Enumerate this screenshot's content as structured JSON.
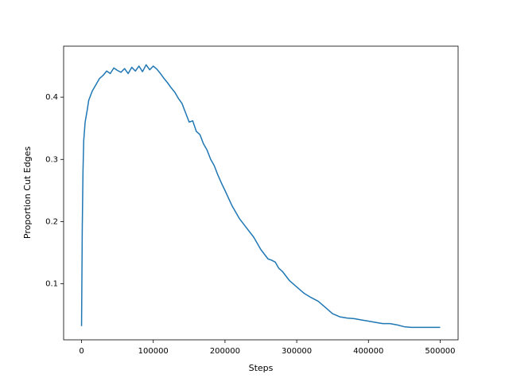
{
  "chart_data": {
    "type": "line",
    "x_label": "Steps",
    "y_label": "Proportion Cut Edges",
    "x": [
      0,
      1000,
      2000,
      3000,
      5000,
      8000,
      10000,
      15000,
      20000,
      25000,
      30000,
      35000,
      40000,
      45000,
      50000,
      55000,
      60000,
      65000,
      70000,
      75000,
      80000,
      85000,
      90000,
      95000,
      100000,
      105000,
      110000,
      115000,
      120000,
      125000,
      130000,
      135000,
      140000,
      145000,
      150000,
      155000,
      160000,
      165000,
      170000,
      175000,
      180000,
      185000,
      190000,
      195000,
      200000,
      210000,
      220000,
      230000,
      240000,
      250000,
      260000,
      265000,
      270000,
      275000,
      280000,
      290000,
      300000,
      310000,
      320000,
      330000,
      340000,
      350000,
      360000,
      370000,
      380000,
      390000,
      400000,
      410000,
      420000,
      430000,
      440000,
      450000,
      460000,
      470000,
      480000,
      490000,
      500000
    ],
    "series": [
      {
        "name": "Proportion Cut Edges",
        "color": "#1f77b4",
        "values": [
          0.032,
          0.19,
          0.28,
          0.33,
          0.36,
          0.38,
          0.395,
          0.41,
          0.42,
          0.43,
          0.435,
          0.442,
          0.438,
          0.447,
          0.443,
          0.44,
          0.446,
          0.438,
          0.448,
          0.442,
          0.45,
          0.441,
          0.452,
          0.444,
          0.45,
          0.445,
          0.438,
          0.43,
          0.423,
          0.415,
          0.408,
          0.398,
          0.39,
          0.375,
          0.36,
          0.362,
          0.345,
          0.34,
          0.325,
          0.315,
          0.3,
          0.29,
          0.275,
          0.262,
          0.25,
          0.225,
          0.205,
          0.19,
          0.175,
          0.155,
          0.14,
          0.138,
          0.135,
          0.125,
          0.12,
          0.105,
          0.095,
          0.085,
          0.078,
          0.072,
          0.062,
          0.052,
          0.047,
          0.045,
          0.044,
          0.042,
          0.04,
          0.038,
          0.036,
          0.036,
          0.034,
          0.031,
          0.03,
          0.03,
          0.03,
          0.03,
          0.03
        ]
      }
    ],
    "xlim": [
      -25000,
      525000
    ],
    "ylim": [
      0.01,
      0.482
    ],
    "xticks": [
      0,
      100000,
      200000,
      300000,
      400000,
      500000
    ],
    "yticks": [
      0.1,
      0.2,
      0.3,
      0.4
    ],
    "grid": false
  }
}
